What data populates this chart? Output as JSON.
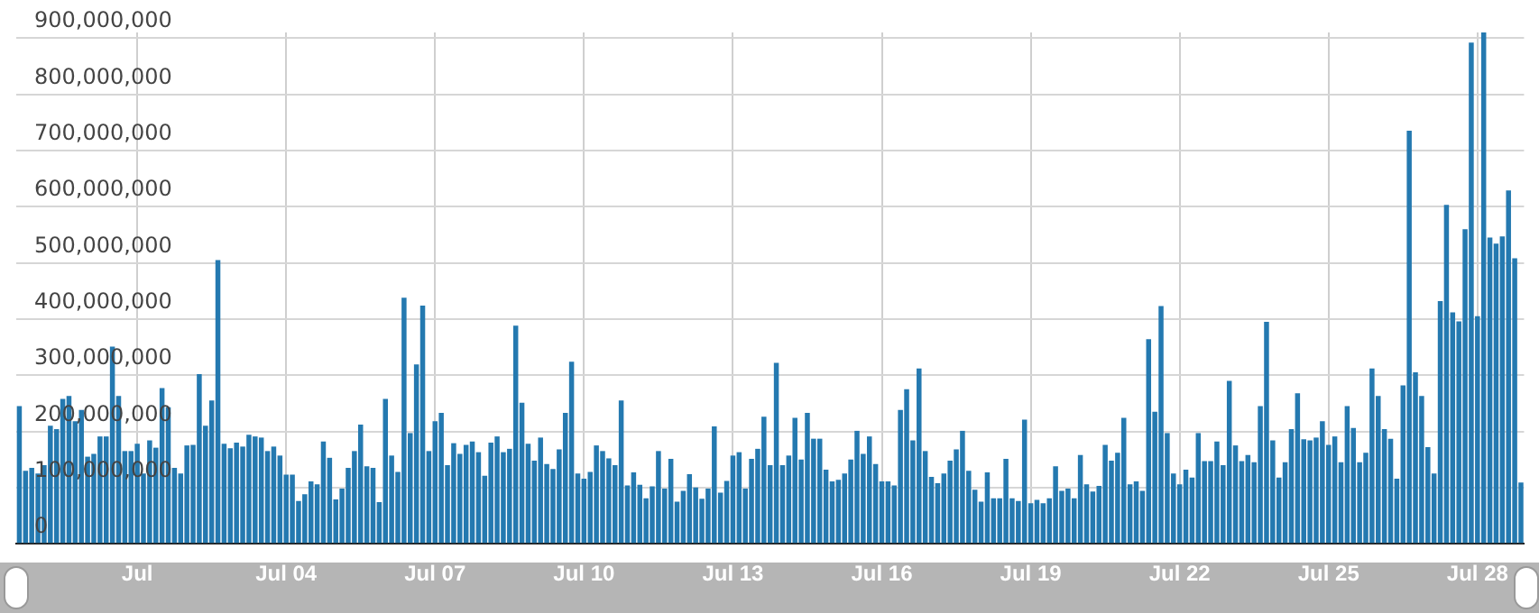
{
  "chart_data": {
    "type": "bar",
    "color": "#2479b0",
    "categories": [
      null,
      null,
      null,
      null,
      null,
      null,
      null,
      null,
      null,
      null,
      null,
      null,
      null,
      null,
      null,
      null,
      null,
      null,
      null,
      "Jul",
      null,
      null,
      null,
      null,
      null,
      null,
      null,
      null,
      null,
      null,
      null,
      null,
      null,
      null,
      null,
      null,
      null,
      null,
      null,
      null,
      null,
      null,
      null,
      "Jul 04",
      null,
      null,
      null,
      null,
      null,
      null,
      null,
      null,
      null,
      null,
      null,
      null,
      null,
      null,
      null,
      null,
      null,
      null,
      null,
      null,
      null,
      null,
      null,
      "Jul 07",
      null,
      null,
      null,
      null,
      null,
      null,
      null,
      null,
      null,
      null,
      null,
      null,
      null,
      null,
      null,
      null,
      null,
      null,
      null,
      null,
      null,
      null,
      null,
      "Jul 10",
      null,
      null,
      null,
      null,
      null,
      null,
      null,
      null,
      null,
      null,
      null,
      null,
      null,
      null,
      null,
      null,
      null,
      null,
      null,
      null,
      null,
      null,
      null,
      "Jul 13",
      null,
      null,
      null,
      null,
      null,
      null,
      null,
      null,
      null,
      null,
      null,
      null,
      null,
      null,
      null,
      null,
      null,
      null,
      null,
      null,
      null,
      null,
      null,
      "Jul 16",
      null,
      null,
      null,
      null,
      null,
      null,
      null,
      null,
      null,
      null,
      null,
      null,
      null,
      null,
      null,
      null,
      null,
      null,
      null,
      null,
      null,
      null,
      null,
      "Jul 19",
      null,
      null,
      null,
      null,
      null,
      null,
      null,
      null,
      null,
      null,
      null,
      null,
      null,
      null,
      null,
      null,
      null,
      null,
      null,
      null,
      null,
      null,
      null,
      "Jul 22",
      null,
      null,
      null,
      null,
      null,
      null,
      null,
      null,
      null,
      null,
      null,
      null,
      null,
      null,
      null,
      null,
      null,
      null,
      null,
      null,
      null,
      null,
      null,
      "Jul 25",
      null,
      null,
      null,
      null,
      null,
      null,
      null,
      null,
      null,
      null,
      null,
      null,
      null,
      null,
      null,
      null,
      null,
      null,
      null,
      null,
      null,
      null,
      null,
      "Jul 28",
      null,
      null,
      null,
      null,
      null,
      null,
      null
    ],
    "values": [
      245000000,
      130000000,
      135000000,
      125000000,
      140000000,
      210000000,
      204000000,
      258000000,
      263000000,
      218000000,
      238000000,
      155000000,
      160000000,
      191000000,
      191000000,
      351000000,
      263000000,
      165000000,
      165000000,
      178000000,
      125000000,
      184000000,
      171000000,
      277000000,
      243000000,
      135000000,
      125000000,
      175000000,
      176000000,
      302000000,
      210000000,
      255000000,
      505000000,
      178000000,
      170000000,
      180000000,
      173000000,
      194000000,
      191000000,
      189000000,
      165000000,
      173000000,
      157000000,
      123000000,
      123000000,
      76000000,
      88000000,
      111000000,
      106000000,
      182000000,
      153000000,
      79000000,
      98000000,
      135000000,
      165000000,
      212000000,
      138000000,
      135000000,
      74000000,
      258000000,
      157000000,
      128000000,
      438000000,
      197000000,
      319000000,
      424000000,
      165000000,
      218000000,
      233000000,
      140000000,
      179000000,
      160000000,
      176000000,
      182000000,
      163000000,
      121000000,
      180000000,
      191000000,
      163000000,
      169000000,
      388000000,
      251000000,
      178000000,
      148000000,
      189000000,
      142000000,
      133000000,
      168000000,
      233000000,
      324000000,
      125000000,
      116000000,
      128000000,
      175000000,
      165000000,
      152000000,
      140000000,
      255000000,
      104000000,
      127000000,
      105000000,
      81000000,
      102000000,
      165000000,
      98000000,
      151000000,
      75000000,
      94000000,
      124000000,
      100000000,
      80000000,
      98000000,
      209000000,
      91000000,
      112000000,
      157000000,
      163000000,
      98000000,
      151000000,
      169000000,
      226000000,
      140000000,
      322000000,
      140000000,
      157000000,
      224000000,
      150000000,
      233000000,
      187000000,
      187000000,
      132000000,
      111000000,
      114000000,
      125000000,
      150000000,
      201000000,
      160000000,
      191000000,
      142000000,
      111000000,
      111000000,
      104000000,
      238000000,
      275000000,
      184000000,
      312000000,
      165000000,
      119000000,
      108000000,
      125000000,
      148000000,
      168000000,
      201000000,
      130000000,
      96000000,
      75000000,
      127000000,
      81000000,
      81000000,
      151000000,
      81000000,
      76000000,
      221000000,
      72000000,
      78000000,
      72000000,
      81000000,
      138000000,
      94000000,
      98000000,
      81000000,
      158000000,
      106000000,
      93000000,
      103000000,
      176000000,
      148000000,
      162000000,
      224000000,
      106000000,
      111000000,
      94000000,
      364000000,
      235000000,
      423000000,
      197000000,
      125000000,
      106000000,
      132000000,
      118000000,
      197000000,
      147000000,
      147000000,
      182000000,
      140000000,
      290000000,
      175000000,
      147000000,
      158000000,
      145000000,
      245000000,
      395000000,
      184000000,
      118000000,
      145000000,
      204000000,
      268000000,
      186000000,
      184000000,
      189000000,
      218000000,
      176000000,
      191000000,
      145000000,
      245000000,
      206000000,
      145000000,
      162000000,
      312000000,
      263000000,
      204000000,
      187000000,
      116000000,
      282000000,
      735000000,
      305000000,
      263000000,
      172000000,
      125000000,
      432000000,
      603000000,
      412000000,
      396000000,
      560000000,
      892000000,
      405000000,
      910000000,
      545000000,
      534000000,
      547000000,
      629000000,
      508000000,
      109000000
    ],
    "ylim": [
      0,
      910000000
    ],
    "yticks": [
      {
        "value": 0,
        "label": "0"
      },
      {
        "value": 100000000,
        "label": "100,000,000"
      },
      {
        "value": 200000000,
        "label": "200,000,000"
      },
      {
        "value": 300000000,
        "label": "300,000,000"
      },
      {
        "value": 400000000,
        "label": "400,000,000"
      },
      {
        "value": 500000000,
        "label": "500,000,000"
      },
      {
        "value": 600000000,
        "label": "600,000,000"
      },
      {
        "value": 700000000,
        "label": "700,000,000"
      },
      {
        "value": 800000000,
        "label": "800,000,000"
      },
      {
        "value": 900000000,
        "label": "900,000,000"
      }
    ],
    "grid": true
  }
}
